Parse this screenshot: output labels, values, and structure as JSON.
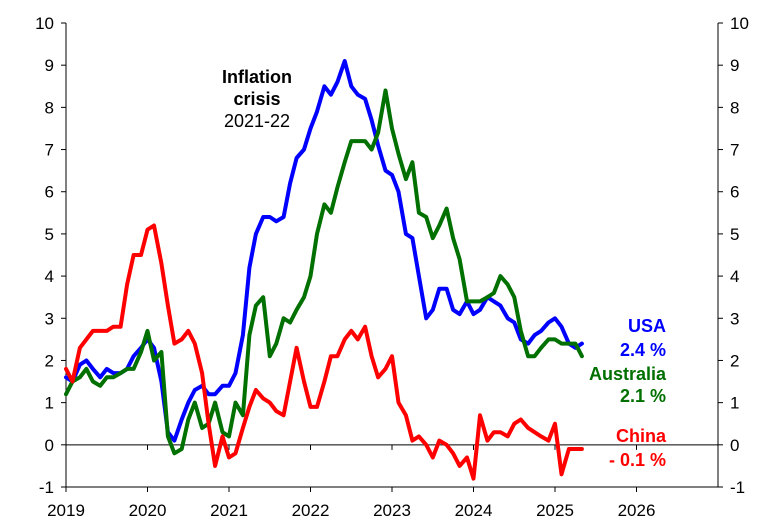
{
  "chart_data": {
    "type": "line",
    "title": "",
    "xlabel": "",
    "ylabel": "",
    "xlim": [
      2019,
      2027
    ],
    "ylim": [
      -1,
      10
    ],
    "x_ticks": [
      "2019",
      "2020",
      "2021",
      "2022",
      "2023",
      "2024",
      "2025",
      "2026"
    ],
    "y_ticks": [
      "-1",
      "0",
      "1",
      "2",
      "3",
      "4",
      "5",
      "6",
      "7",
      "8",
      "9",
      "10"
    ],
    "grid": false,
    "series": [
      {
        "name": "USA",
        "color": "#0000ff",
        "x": [
          2019.0,
          2019.08,
          2019.17,
          2019.25,
          2019.33,
          2019.42,
          2019.5,
          2019.58,
          2019.67,
          2019.75,
          2019.83,
          2019.92,
          2020.0,
          2020.08,
          2020.17,
          2020.25,
          2020.33,
          2020.42,
          2020.5,
          2020.58,
          2020.67,
          2020.75,
          2020.83,
          2020.92,
          2021.0,
          2021.08,
          2021.17,
          2021.25,
          2021.33,
          2021.42,
          2021.5,
          2021.58,
          2021.67,
          2021.75,
          2021.83,
          2021.92,
          2022.0,
          2022.08,
          2022.17,
          2022.25,
          2022.33,
          2022.42,
          2022.5,
          2022.58,
          2022.67,
          2022.75,
          2022.83,
          2022.92,
          2023.0,
          2023.08,
          2023.17,
          2023.25,
          2023.33,
          2023.42,
          2023.5,
          2023.58,
          2023.67,
          2023.75,
          2023.83,
          2023.92,
          2024.0,
          2024.08,
          2024.17,
          2024.25,
          2024.33,
          2024.42,
          2024.5,
          2024.58,
          2024.67,
          2024.75,
          2024.83,
          2024.92,
          2025.0,
          2025.08,
          2025.17,
          2025.25,
          2025.33
        ],
        "y": [
          1.6,
          1.5,
          1.9,
          2.0,
          1.8,
          1.6,
          1.8,
          1.7,
          1.7,
          1.8,
          2.1,
          2.3,
          2.5,
          2.3,
          1.5,
          0.3,
          0.1,
          0.6,
          1.0,
          1.3,
          1.4,
          1.2,
          1.2,
          1.4,
          1.4,
          1.7,
          2.6,
          4.2,
          5.0,
          5.4,
          5.4,
          5.3,
          5.4,
          6.2,
          6.8,
          7.0,
          7.5,
          7.9,
          8.5,
          8.3,
          8.6,
          9.1,
          8.5,
          8.3,
          8.2,
          7.7,
          7.1,
          6.5,
          6.4,
          6.0,
          5.0,
          4.9,
          4.0,
          3.0,
          3.2,
          3.7,
          3.7,
          3.2,
          3.1,
          3.4,
          3.1,
          3.2,
          3.5,
          3.4,
          3.3,
          3.0,
          2.9,
          2.5,
          2.4,
          2.6,
          2.7,
          2.9,
          3.0,
          2.8,
          2.4,
          2.3,
          2.4
        ]
      },
      {
        "name": "Australia",
        "color": "#007000",
        "x": [
          2019.0,
          2019.08,
          2019.17,
          2019.25,
          2019.33,
          2019.42,
          2019.5,
          2019.58,
          2019.67,
          2019.75,
          2019.83,
          2019.92,
          2020.0,
          2020.08,
          2020.17,
          2020.25,
          2020.33,
          2020.42,
          2020.5,
          2020.58,
          2020.67,
          2020.75,
          2020.83,
          2020.92,
          2021.0,
          2021.08,
          2021.17,
          2021.25,
          2021.33,
          2021.42,
          2021.5,
          2021.58,
          2021.67,
          2021.75,
          2021.83,
          2021.92,
          2022.0,
          2022.08,
          2022.17,
          2022.25,
          2022.33,
          2022.42,
          2022.5,
          2022.58,
          2022.67,
          2022.75,
          2022.83,
          2022.92,
          2023.0,
          2023.08,
          2023.17,
          2023.25,
          2023.33,
          2023.42,
          2023.5,
          2023.58,
          2023.67,
          2023.75,
          2023.83,
          2023.92,
          2024.0,
          2024.08,
          2024.17,
          2024.25,
          2024.33,
          2024.42,
          2024.5,
          2024.58,
          2024.67,
          2024.75,
          2024.83,
          2024.92,
          2025.0,
          2025.08,
          2025.17,
          2025.25,
          2025.33
        ],
        "y": [
          1.2,
          1.5,
          1.6,
          1.8,
          1.5,
          1.4,
          1.6,
          1.6,
          1.7,
          1.8,
          1.8,
          2.2,
          2.7,
          2.0,
          2.2,
          0.2,
          -0.2,
          -0.1,
          0.6,
          1.0,
          0.4,
          0.5,
          1.0,
          0.3,
          0.2,
          1.0,
          0.7,
          2.6,
          3.3,
          3.5,
          2.1,
          2.4,
          3.0,
          2.9,
          3.2,
          3.5,
          4.0,
          5.0,
          5.7,
          5.5,
          6.1,
          6.7,
          7.2,
          7.2,
          7.2,
          7.0,
          7.4,
          8.4,
          7.5,
          6.9,
          6.3,
          6.7,
          5.5,
          5.4,
          4.9,
          5.2,
          5.6,
          4.9,
          4.4,
          3.4,
          3.4,
          3.4,
          3.5,
          3.6,
          4.0,
          3.8,
          3.5,
          2.7,
          2.1,
          2.1,
          2.3,
          2.5,
          2.5,
          2.4,
          2.4,
          2.4,
          2.1
        ]
      },
      {
        "name": "China",
        "color": "#ff0000",
        "x": [
          2019.0,
          2019.08,
          2019.17,
          2019.25,
          2019.33,
          2019.42,
          2019.5,
          2019.58,
          2019.67,
          2019.75,
          2019.83,
          2019.92,
          2020.0,
          2020.08,
          2020.17,
          2020.25,
          2020.33,
          2020.42,
          2020.5,
          2020.58,
          2020.67,
          2020.75,
          2020.83,
          2020.92,
          2021.0,
          2021.08,
          2021.17,
          2021.25,
          2021.33,
          2021.42,
          2021.5,
          2021.58,
          2021.67,
          2021.75,
          2021.83,
          2021.92,
          2022.0,
          2022.08,
          2022.17,
          2022.25,
          2022.33,
          2022.42,
          2022.5,
          2022.58,
          2022.67,
          2022.75,
          2022.83,
          2022.92,
          2023.0,
          2023.08,
          2023.17,
          2023.25,
          2023.33,
          2023.42,
          2023.5,
          2023.58,
          2023.67,
          2023.75,
          2023.83,
          2023.92,
          2024.0,
          2024.08,
          2024.17,
          2024.25,
          2024.33,
          2024.42,
          2024.5,
          2024.58,
          2024.67,
          2024.75,
          2024.83,
          2024.92,
          2025.0,
          2025.08,
          2025.17,
          2025.25,
          2025.33
        ],
        "y": [
          1.8,
          1.5,
          2.3,
          2.5,
          2.7,
          2.7,
          2.7,
          2.8,
          2.8,
          3.8,
          4.5,
          4.5,
          5.1,
          5.2,
          4.3,
          3.3,
          2.4,
          2.5,
          2.7,
          2.4,
          1.7,
          0.5,
          -0.5,
          0.2,
          -0.3,
          -0.2,
          0.4,
          0.9,
          1.3,
          1.1,
          1.0,
          0.8,
          0.7,
          1.5,
          2.3,
          1.5,
          0.9,
          0.9,
          1.5,
          2.1,
          2.1,
          2.5,
          2.7,
          2.5,
          2.8,
          2.1,
          1.6,
          1.8,
          2.1,
          1.0,
          0.7,
          0.1,
          0.2,
          0.0,
          -0.3,
          0.1,
          0.0,
          -0.2,
          -0.5,
          -0.3,
          -0.8,
          0.7,
          0.1,
          0.3,
          0.3,
          0.2,
          0.5,
          0.6,
          0.4,
          0.3,
          0.2,
          0.1,
          0.5,
          -0.7,
          -0.1,
          -0.1,
          -0.1
        ]
      }
    ],
    "annotations": {
      "crisis_line1": "Inflation",
      "crisis_line2": "crisis",
      "crisis_line3": "2021-22",
      "usa_label": "USA",
      "usa_value": "2.4 %",
      "aus_label": "Australia",
      "aus_value": "2.1 %",
      "china_label": "China",
      "china_value": "- 0.1 %"
    }
  }
}
